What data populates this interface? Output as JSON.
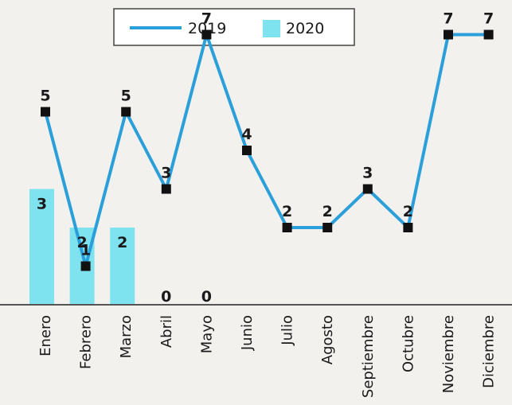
{
  "chart_data": {
    "type": "bar+line",
    "categories": [
      "Enero",
      "Febrero",
      "Marzo",
      "Abril",
      "Mayo",
      "Junio",
      "Julio",
      "Agosto",
      "Septiembre",
      "Octubre",
      "Noviembre",
      "Diciembre"
    ],
    "series": [
      {
        "name": "2019",
        "type": "line",
        "color": "#2b9fd9",
        "values": [
          5,
          1,
          5,
          3,
          7,
          4,
          2,
          2,
          3,
          2,
          7,
          7
        ]
      },
      {
        "name": "2020",
        "type": "bar",
        "color": "#7fe3ef",
        "values": [
          3,
          2,
          2,
          0,
          0,
          null,
          null,
          null,
          null,
          null,
          null,
          null
        ]
      }
    ],
    "ylim": [
      0,
      8
    ],
    "legend": "top",
    "grid": false
  }
}
